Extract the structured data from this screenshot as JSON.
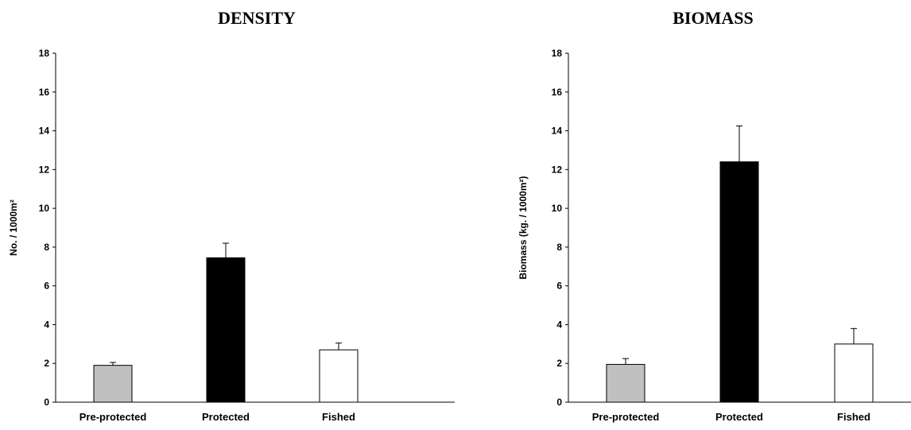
{
  "chart_data": [
    {
      "type": "bar",
      "title": "DENSITY",
      "ylabel": "No. / 1000m²",
      "xlabel": "",
      "categories": [
        "Pre-protected",
        "Protected",
        "Fished"
      ],
      "values": [
        1.9,
        7.45,
        2.7
      ],
      "errors": [
        0.15,
        0.75,
        0.35
      ],
      "colors": [
        "#c0c0c0",
        "#000000",
        "#ffffff"
      ],
      "ylim": [
        0,
        18
      ],
      "yticks": [
        0,
        2,
        4,
        6,
        8,
        10,
        12,
        14,
        16,
        18
      ],
      "grid": false
    },
    {
      "type": "bar",
      "title": "BIOMASS",
      "ylabel": "Biomass (kg. / 1000m²)",
      "xlabel": "",
      "categories": [
        "Pre-protected",
        "Protected",
        "Fished"
      ],
      "values": [
        1.95,
        12.4,
        3.0
      ],
      "errors": [
        0.3,
        1.85,
        0.8
      ],
      "colors": [
        "#c0c0c0",
        "#000000",
        "#ffffff"
      ],
      "ylim": [
        0,
        18
      ],
      "yticks": [
        0,
        2,
        4,
        6,
        8,
        10,
        12,
        14,
        16,
        18
      ],
      "grid": false
    }
  ]
}
